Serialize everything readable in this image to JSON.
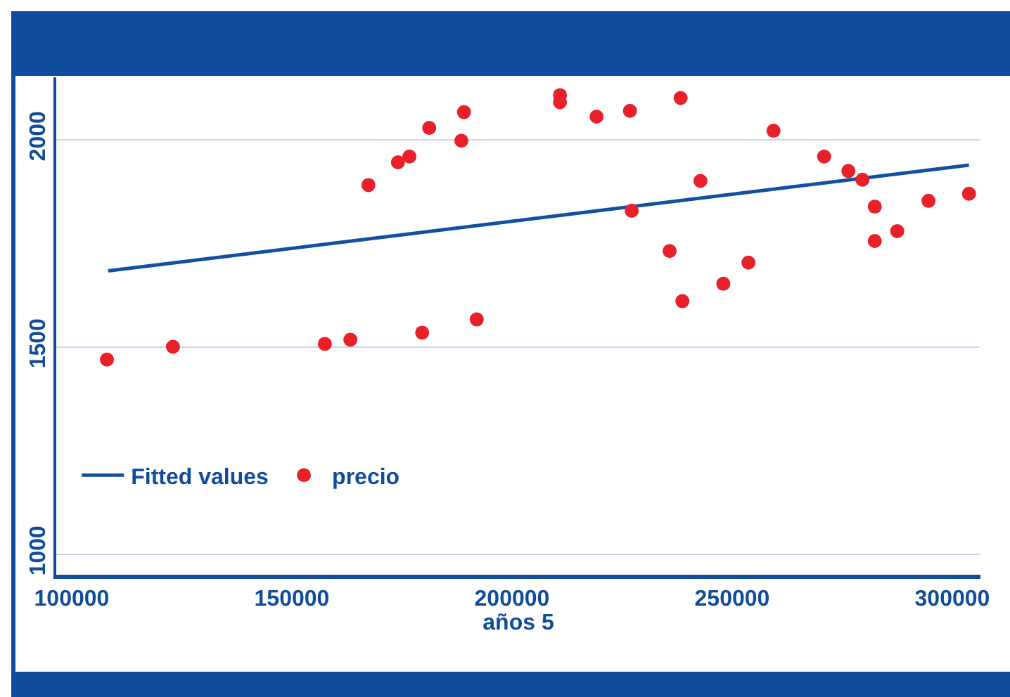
{
  "chart_data": {
    "type": "scatter",
    "xlabel": "años 5",
    "xlim": [
      96500,
      306400
    ],
    "xticks": [
      100000,
      150000,
      200000,
      250000,
      300000
    ],
    "ylim": [
      950,
      2150
    ],
    "yticks": [
      1000,
      1500,
      2000
    ],
    "grid": "y",
    "legend": "bottom left",
    "series": [
      {
        "name": "Fitted values",
        "type": "line",
        "color": "#1450a0",
        "x": [
          108300,
          303800
        ],
        "values": [
          1683,
          1938
        ]
      },
      {
        "name": "precio",
        "color": "#e8202a",
        "marker": "circle",
        "x": [
          108000,
          123000,
          157500,
          163300,
          179600,
          192000,
          167400,
          174100,
          176700,
          181200,
          188500,
          189100,
          210900,
          210900,
          219200,
          226800,
          238300,
          259400,
          270900,
          276400,
          279600,
          242800,
          227200,
          235800,
          238700,
          248000,
          253700,
          282400,
          282400,
          287500,
          294600,
          303800
        ],
        "values": [
          1469,
          1500,
          1507,
          1517,
          1534,
          1566,
          1890,
          1945,
          1959,
          2028,
          1997,
          2066,
          2107,
          2090,
          2055,
          2069,
          2100,
          2021,
          1959,
          1924,
          1903,
          1900,
          1828,
          1731,
          1610,
          1652,
          1703,
          1838,
          1755,
          1779,
          1852,
          1869
        ]
      }
    ]
  }
}
